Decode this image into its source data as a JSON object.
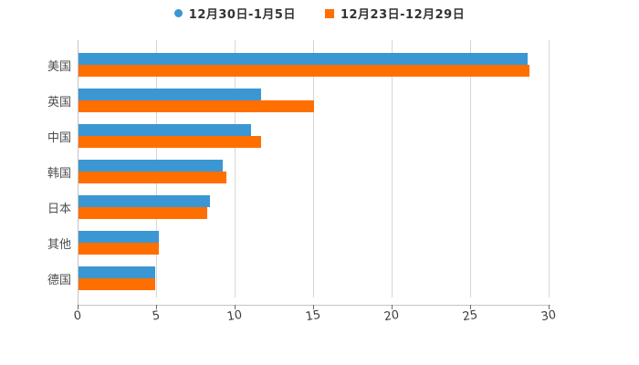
{
  "chart_data": {
    "type": "bar",
    "orientation": "horizontal",
    "title": "",
    "xlabel": "",
    "ylabel": "",
    "categories": [
      "美国",
      "英国",
      "中国",
      "韩国",
      "日本",
      "其他",
      "德国"
    ],
    "series": [
      {
        "name": "12月30日-1月5日",
        "marker": "circle",
        "color": "#3B97D3",
        "values": [
          28.6,
          11.6,
          11.0,
          9.2,
          8.4,
          5.1,
          4.9
        ]
      },
      {
        "name": "12月23日-12月29日",
        "marker": "square",
        "color": "#FF6F00",
        "values": [
          28.7,
          15.0,
          11.6,
          9.4,
          8.2,
          5.1,
          4.9
        ]
      }
    ],
    "x_ticks": [
      "0",
      "5",
      "10",
      "15",
      "20",
      "25",
      "30"
    ],
    "xlim": [
      0,
      30
    ],
    "grid": "vertical-only",
    "legend_position": "top-center",
    "colors": {
      "gridline": "#d6d6d6",
      "axis_line": "#c4c4c4",
      "tick_mark": "#6a6a6a",
      "tick_label": "#3d3d3d",
      "category_label": "#4d4d4d",
      "legend_text": "#333333",
      "background": "#ffffff"
    }
  }
}
